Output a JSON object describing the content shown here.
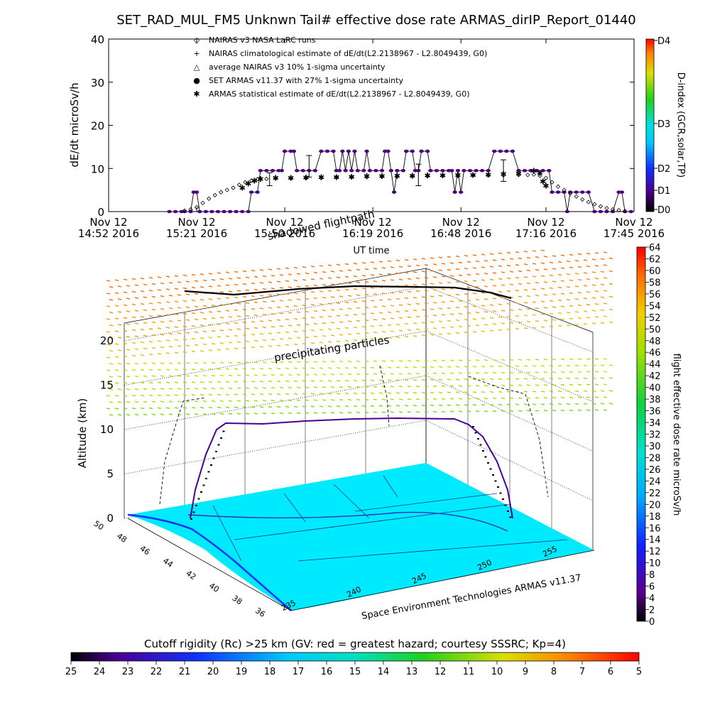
{
  "page": {
    "title": "SET_RAD_MUL_FM5 Unknwn Tail#  effective dose rate ARMAS_dirIP_Report_01440"
  },
  "chart_data": [
    {
      "type": "scatter",
      "title": "SET_RAD_MUL_FM5 Unknwn Tail#  effective dose rate ARMAS_dirIP_Report_01440",
      "xlabel": "UT time",
      "ylabel": "dE/dt microSv/h",
      "ylim": [
        0,
        40
      ],
      "yticks": [
        "0",
        "10",
        "20",
        "30",
        "40"
      ],
      "x_tick_labels": [
        {
          "line1": "Nov 12",
          "line2": "14:52 2016",
          "t": 0
        },
        {
          "line1": "Nov 12",
          "line2": "15:21 2016",
          "t": 29
        },
        {
          "line1": "Nov 12",
          "line2": "15:50 2016",
          "t": 58
        },
        {
          "line1": "Nov 12",
          "line2": "16:19 2016",
          "t": 87
        },
        {
          "line1": "Nov 12",
          "line2": "16:48 2016",
          "t": 116
        },
        {
          "line1": "Nov 12",
          "line2": "17:16 2016",
          "t": 144
        },
        {
          "line1": "Nov 12",
          "line2": "17:45 2016",
          "t": 173
        }
      ],
      "xlim": [
        0,
        173
      ],
      "legend": [
        {
          "symbol": "◇",
          "label": "NAIRAS v3 NASA LaRC runs"
        },
        {
          "symbol": "+",
          "label": "NAIRAS climatological estimate of dE/dt(L2.2138967 - L2.8049439, G0)"
        },
        {
          "symbol": "△",
          "label": "average NAIRAS v3 10% 1-sigma uncertainty"
        },
        {
          "symbol": "●",
          "label": "SET ARMAS v11.37 with 27% 1-sigma uncertainty"
        },
        {
          "symbol": "✱",
          "label": "ARMAS statistical estimate of dE/dt(L2.2138967 - L2.8049439, G0)"
        }
      ],
      "legend_placement": "top-left",
      "series": [
        {
          "name": "SET ARMAS v11.37 with 27% 1-sigma uncertainty",
          "color": "#4b0082",
          "points": [
            [
              20,
              0
            ],
            [
              22,
              0
            ],
            [
              24,
              0
            ],
            [
              25,
              0
            ],
            [
              27,
              0
            ],
            [
              28,
              4.5
            ],
            [
              29,
              4.5
            ],
            [
              30,
              0
            ],
            [
              32,
              0
            ],
            [
              34,
              0
            ],
            [
              36,
              0
            ],
            [
              38,
              0
            ],
            [
              40,
              0
            ],
            [
              42,
              0
            ],
            [
              44,
              0
            ],
            [
              46,
              0
            ],
            [
              47,
              4.5
            ],
            [
              49,
              4.5
            ],
            [
              50,
              9.5
            ],
            [
              52,
              9.5
            ],
            [
              54,
              9.5
            ],
            [
              56,
              9.5
            ],
            [
              57,
              9.5
            ],
            [
              58,
              14
            ],
            [
              60,
              14
            ],
            [
              61,
              14
            ],
            [
              62,
              9.5
            ],
            [
              64,
              9.5
            ],
            [
              66,
              9.5
            ],
            [
              68,
              9.5
            ],
            [
              70,
              14
            ],
            [
              72,
              14
            ],
            [
              74,
              14
            ],
            [
              75,
              9.5
            ],
            [
              76,
              9.5
            ],
            [
              77,
              14
            ],
            [
              78,
              9.5
            ],
            [
              79,
              14
            ],
            [
              80,
              9.5
            ],
            [
              81,
              14
            ],
            [
              82,
              9.5
            ],
            [
              84,
              9.5
            ],
            [
              85,
              14
            ],
            [
              86,
              9.5
            ],
            [
              88,
              9.5
            ],
            [
              90,
              9.5
            ],
            [
              91,
              14
            ],
            [
              92,
              14
            ],
            [
              93,
              9.5
            ],
            [
              94,
              4.5
            ],
            [
              95,
              9.5
            ],
            [
              97,
              9.5
            ],
            [
              98,
              14
            ],
            [
              100,
              14
            ],
            [
              101,
              9.5
            ],
            [
              102,
              9.5
            ],
            [
              103,
              14
            ],
            [
              105,
              14
            ],
            [
              106,
              9.5
            ],
            [
              108,
              9.5
            ],
            [
              110,
              9.5
            ],
            [
              112,
              9.5
            ],
            [
              113,
              9.5
            ],
            [
              114,
              4.5
            ],
            [
              115,
              9.5
            ],
            [
              116,
              4.5
            ],
            [
              117,
              9.5
            ],
            [
              119,
              9.5
            ],
            [
              121,
              9.5
            ],
            [
              123,
              9.5
            ],
            [
              125,
              9.5
            ],
            [
              127,
              14
            ],
            [
              129,
              14
            ],
            [
              131,
              14
            ],
            [
              133,
              14
            ],
            [
              135,
              9.5
            ],
            [
              137,
              9.5
            ],
            [
              139,
              9.5
            ],
            [
              141,
              9.5
            ],
            [
              143,
              9.5
            ],
            [
              145,
              9.5
            ],
            [
              146,
              4.5
            ],
            [
              148,
              4.5
            ],
            [
              150,
              4.5
            ],
            [
              151,
              0
            ],
            [
              152,
              4.5
            ],
            [
              154,
              4.5
            ],
            [
              156,
              4.5
            ],
            [
              158,
              4.5
            ],
            [
              160,
              0
            ],
            [
              162,
              0
            ],
            [
              164,
              0
            ],
            [
              166,
              0
            ],
            [
              168,
              4.5
            ],
            [
              169,
              4.5
            ],
            [
              170,
              0
            ],
            [
              172,
              0
            ]
          ]
        },
        {
          "name": "NAIRAS v3 NASA LaRC runs",
          "color": "#000000",
          "points": [
            [
              25,
              0.2
            ],
            [
              27,
              0.5
            ],
            [
              29,
              1
            ],
            [
              31,
              2
            ],
            [
              33,
              3
            ],
            [
              35,
              3.8
            ],
            [
              37,
              4.5
            ],
            [
              39,
              5
            ],
            [
              41,
              5.5
            ],
            [
              43,
              6.2
            ],
            [
              45,
              6.8
            ],
            [
              47,
              7.2
            ],
            [
              49,
              7.5
            ],
            [
              52,
              7.6
            ],
            [
              55,
              7.7
            ],
            [
              60,
              7.7
            ],
            [
              65,
              7.8
            ],
            [
              70,
              7.8
            ],
            [
              75,
              7.9
            ],
            [
              80,
              8
            ],
            [
              85,
              8
            ],
            [
              90,
              8.1
            ],
            [
              95,
              8.1
            ],
            [
              100,
              8.2
            ],
            [
              105,
              8.2
            ],
            [
              110,
              8.3
            ],
            [
              115,
              8.3
            ],
            [
              120,
              8.4
            ],
            [
              125,
              8.4
            ],
            [
              130,
              8.4
            ],
            [
              135,
              8.5
            ],
            [
              138,
              8.5
            ],
            [
              140,
              8.6
            ],
            [
              142,
              8.3
            ],
            [
              144,
              7.8
            ],
            [
              146,
              6.8
            ],
            [
              148,
              5.8
            ],
            [
              150,
              5
            ],
            [
              152,
              4.2
            ],
            [
              154,
              3.5
            ],
            [
              156,
              2.8
            ],
            [
              158,
              2.2
            ],
            [
              160,
              1.7
            ],
            [
              162,
              1.2
            ],
            [
              164,
              0.8
            ],
            [
              166,
              0.5
            ],
            [
              168,
              0.3
            ],
            [
              170,
              0.1
            ]
          ]
        },
        {
          "name": "ARMAS statistical estimate of dE/dt(L2.2138967 - L2.8049439, G0)",
          "color": "#000000",
          "points": [
            [
              44,
              5.5
            ],
            [
              46,
              6.5
            ],
            [
              48,
              7.2
            ],
            [
              50,
              7.6
            ],
            [
              55,
              7.8
            ],
            [
              60,
              7.8
            ],
            [
              65,
              7.9
            ],
            [
              70,
              8
            ],
            [
              75,
              8
            ],
            [
              80,
              8.1
            ],
            [
              85,
              8.2
            ],
            [
              90,
              8.2
            ],
            [
              95,
              8.3
            ],
            [
              100,
              8.3
            ],
            [
              105,
              8.4
            ],
            [
              110,
              8.4
            ],
            [
              115,
              8.5
            ],
            [
              120,
              8.5
            ],
            [
              125,
              8.6
            ],
            [
              130,
              8.7
            ],
            [
              135,
              8.8
            ],
            [
              140,
              9.5
            ],
            [
              142,
              9
            ],
            [
              143,
              7
            ],
            [
              144,
              6
            ]
          ]
        }
      ],
      "error_bars": [
        {
          "t": 53,
          "y": 7.5,
          "err": 1.5
        },
        {
          "t": 66,
          "y": 10.5,
          "err": 2.5
        },
        {
          "t": 102,
          "y": 8.5,
          "err": 2.5
        },
        {
          "t": 130,
          "y": 9.5,
          "err": 2.5
        }
      ],
      "colorbar": {
        "label": "D-index (GCR,solar,TP)",
        "ticks": [
          "D4",
          "D3",
          "D2",
          "D1",
          "D0"
        ]
      }
    },
    {
      "type": "heatmap",
      "title": "shadowed flightpath",
      "annotation": "precipitating particles",
      "credit": "Space Environment Technologies ARMAS v11.37",
      "zlabel": "Altitude (km)",
      "zticks": [
        "0",
        "5",
        "10",
        "15",
        "20"
      ],
      "zlim": [
        0,
        22
      ],
      "latitude_ticks": [
        "36",
        "38",
        "40",
        "42",
        "44",
        "46",
        "48",
        "50"
      ],
      "longitude_ticks": [
        "235",
        "240",
        "245",
        "250",
        "255"
      ],
      "flight_altitude_km": 10,
      "colorbar": {
        "label": "flight effective dose rate microSv/h",
        "range": [
          0,
          64
        ],
        "ticks": [
          "64",
          "62",
          "60",
          "58",
          "56",
          "54",
          "52",
          "50",
          "48",
          "46",
          "44",
          "42",
          "40",
          "38",
          "36",
          "34",
          "32",
          "30",
          "28",
          "26",
          "24",
          "22",
          "20",
          "18",
          "16",
          "14",
          "12",
          "10",
          "8",
          "6",
          "4",
          "2",
          "0"
        ]
      },
      "bottom_colorbar": {
        "label": "Cutoff rigidity (Rc) >25 km (GV: red = greatest hazard; courtesy SSSRC; Kp=4)",
        "ticks": [
          "25",
          "24",
          "23",
          "22",
          "21",
          "20",
          "19",
          "18",
          "17",
          "16",
          "15",
          "14",
          "13",
          "12",
          "11",
          "10",
          "9",
          "8",
          "7",
          "6",
          "5"
        ]
      }
    }
  ]
}
